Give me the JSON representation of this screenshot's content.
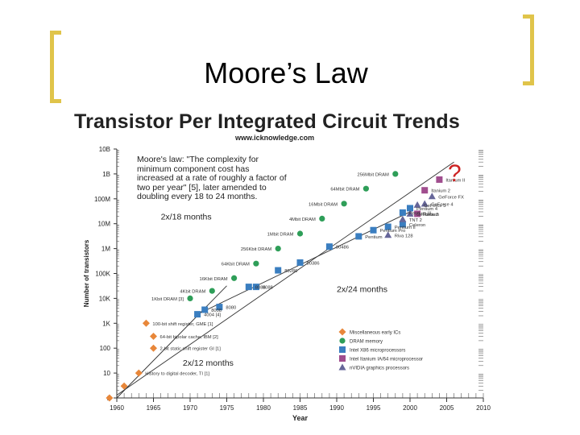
{
  "slide": {
    "title": "Moore’s Law",
    "accent_color": "#e0c44a"
  },
  "chart_data": {
    "type": "scatter",
    "title": "Transistor Per Integrated Circuit Trends",
    "subtitle": "www.icknowledge.com",
    "xlabel": "Year",
    "ylabel": "Number of transistors",
    "xlim": [
      1960,
      2010
    ],
    "ylim": [
      1,
      10000000000
    ],
    "log_y": true,
    "x_ticks": [
      "1960",
      "1965",
      "1970",
      "1975",
      "1980",
      "1985",
      "1990",
      "1995",
      "2000",
      "2005",
      "2010"
    ],
    "y_ticks": [
      "10B",
      "1B",
      "100M",
      "10M",
      "1M",
      "100K",
      "10K",
      "1K",
      "100",
      "10",
      "1"
    ],
    "quote": "Moore's law: \"The complexity for minimum component cost has increased at a rate of roughly a factor of two per year\" [5], later amended to doubling every 18 to 24 months.",
    "question_mark": "?",
    "trend_lines": [
      {
        "label": "2x/12 months",
        "x": [
          1960,
          1975
        ],
        "y": [
          1,
          32000
        ]
      },
      {
        "label": "2x/18 months",
        "x": [
          1960,
          2006
        ],
        "y": [
          1.3,
          3000000000
        ]
      },
      {
        "label": "2x/24 months",
        "x": [
          1971,
          2000
        ],
        "y": [
          2300,
          30000000
        ]
      }
    ],
    "legend": {
      "position": "bottom-right",
      "entries": [
        {
          "label": "Miscellaneous early ICs",
          "shape": "diamond",
          "color": "#e8873a"
        },
        {
          "label": "DRAM memory",
          "shape": "circle",
          "color": "#2e9e58"
        },
        {
          "label": "Intel X86 microprocessors",
          "shape": "square",
          "color": "#3a7ec0"
        },
        {
          "label": "Intel Itanium IA/64 microprocessor",
          "shape": "square",
          "color": "#a04d8e"
        },
        {
          "label": "nVIDIA graphics processors",
          "shape": "triangle",
          "color": "#666699"
        }
      ]
    },
    "series": [
      {
        "name": "Miscellaneous early ICs",
        "color": "#e8873a",
        "shape": "diamond",
        "points": [
          {
            "x": 1959,
            "y": 1,
            "label": ""
          },
          {
            "x": 1961,
            "y": 3,
            "label": ""
          },
          {
            "x": 1963,
            "y": 10,
            "label": "History to digital decoder, TI [1]"
          },
          {
            "x": 1965,
            "y": 100,
            "label": "2-bit static shift register GI [1]"
          },
          {
            "x": 1965,
            "y": 300,
            "label": "64-bit bipolar cache, IBM [2]"
          },
          {
            "x": 1964,
            "y": 1000,
            "label": "100-bit shift register, GME [1]"
          }
        ]
      },
      {
        "name": "DRAM memory",
        "color": "#2e9e58",
        "shape": "circle",
        "points": [
          {
            "x": 1970,
            "y": 10000,
            "label": "1Kbit DRAM [3]"
          },
          {
            "x": 1973,
            "y": 20000,
            "label": "4Kbit DRAM"
          },
          {
            "x": 1976,
            "y": 65000,
            "label": "16Kbit DRAM"
          },
          {
            "x": 1979,
            "y": 250000,
            "label": "64Kbit DRAM"
          },
          {
            "x": 1982,
            "y": 1000000,
            "label": "256Kbit DRAM"
          },
          {
            "x": 1985,
            "y": 4000000,
            "label": "1Mbit DRAM"
          },
          {
            "x": 1988,
            "y": 16000000,
            "label": "4Mbit DRAM"
          },
          {
            "x": 1991,
            "y": 64000000,
            "label": "16Mbit DRAM"
          },
          {
            "x": 1994,
            "y": 256000000,
            "label": "64Mbit DRAM"
          },
          {
            "x": 1998,
            "y": 1000000000,
            "label": "256Mbit DRAM"
          }
        ]
      },
      {
        "name": "Intel X86 microprocessors",
        "color": "#3a7ec0",
        "shape": "square",
        "points": [
          {
            "x": 1971,
            "y": 2300,
            "label": "4004 [4]"
          },
          {
            "x": 1972,
            "y": 3500,
            "label": "8008"
          },
          {
            "x": 1974,
            "y": 4500,
            "label": "8080"
          },
          {
            "x": 1978,
            "y": 29000,
            "label": "8086"
          },
          {
            "x": 1979,
            "y": 29000,
            "label": "8088"
          },
          {
            "x": 1982,
            "y": 134000,
            "label": "80286"
          },
          {
            "x": 1985,
            "y": 275000,
            "label": "80386"
          },
          {
            "x": 1989,
            "y": 1200000,
            "label": "80486"
          },
          {
            "x": 1993,
            "y": 3100000,
            "label": "Pentium"
          },
          {
            "x": 1995,
            "y": 5500000,
            "label": "Pentium Pro"
          },
          {
            "x": 1997,
            "y": 7500000,
            "label": "Pentium II"
          },
          {
            "x": 1999,
            "y": 9500000,
            "label": "Celeron"
          },
          {
            "x": 1999,
            "y": 28000000,
            "label": "Pentium III"
          },
          {
            "x": 2000,
            "y": 42000000,
            "label": "Pentium 4"
          }
        ]
      },
      {
        "name": "Intel Itanium IA/64 microprocessor",
        "color": "#a04d8e",
        "shape": "square",
        "points": [
          {
            "x": 2001,
            "y": 25000000,
            "label": "Itanium"
          },
          {
            "x": 2002,
            "y": 220000000,
            "label": "Itanium 2"
          },
          {
            "x": 2004,
            "y": 592000000,
            "label": "Itanium II"
          }
        ]
      },
      {
        "name": "nVIDIA graphics processors",
        "color": "#666699",
        "shape": "triangle",
        "points": [
          {
            "x": 1997,
            "y": 3500000,
            "label": "Riva 128"
          },
          {
            "x": 1999,
            "y": 15000000,
            "label": "TNT 2"
          },
          {
            "x": 2000,
            "y": 25000000,
            "label": "GeForce 2"
          },
          {
            "x": 2001,
            "y": 57000000,
            "label": "GeForce 3"
          },
          {
            "x": 2002,
            "y": 63000000,
            "label": "GeForce 4"
          },
          {
            "x": 2003,
            "y": 125000000,
            "label": "GeForce FX"
          }
        ]
      }
    ]
  }
}
